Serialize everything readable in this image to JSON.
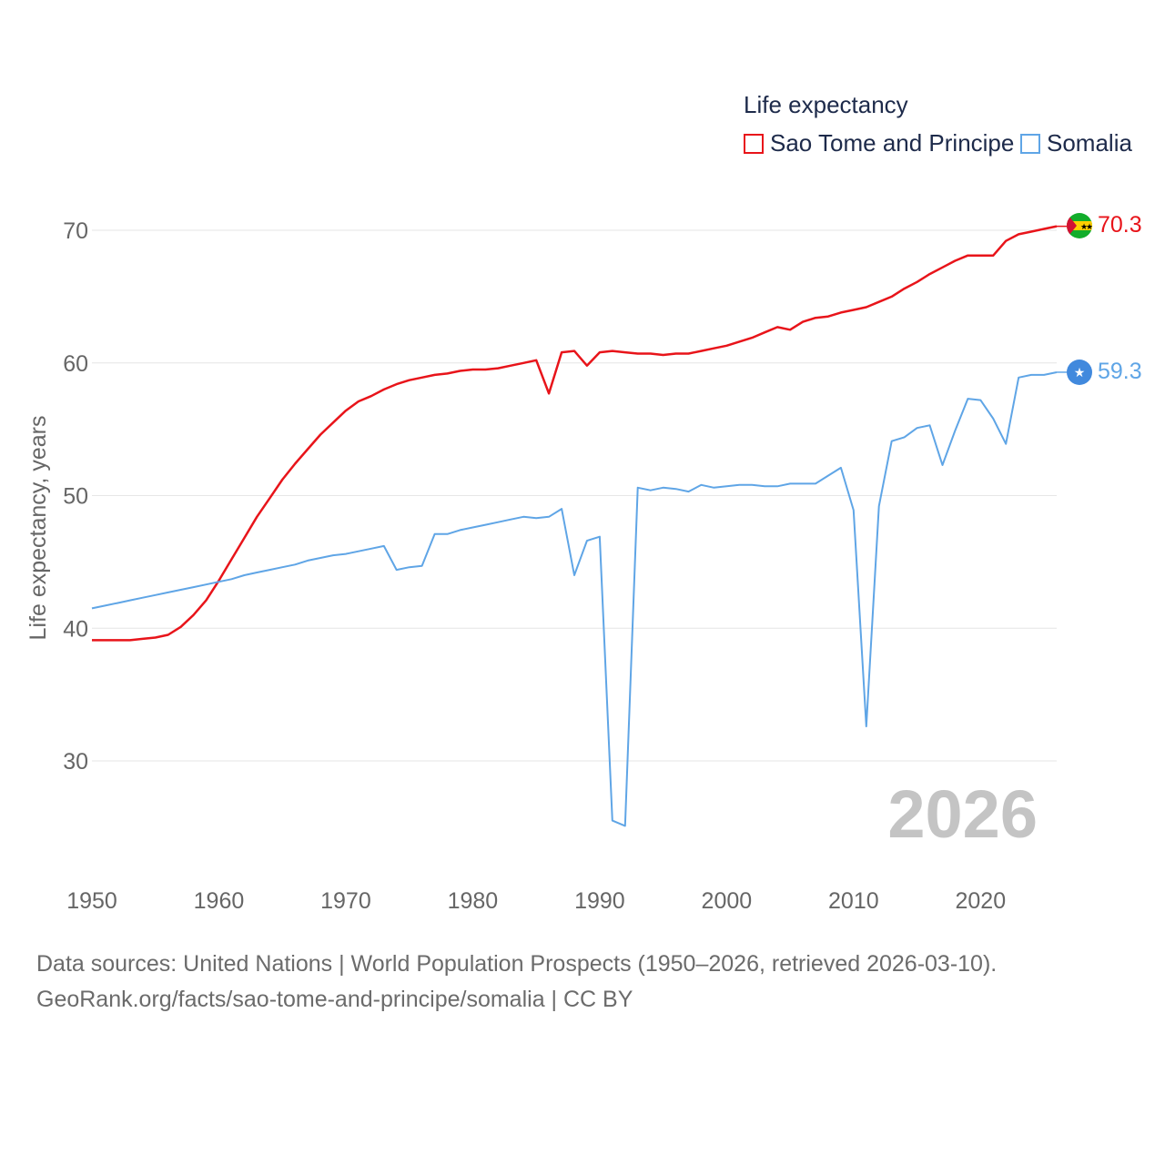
{
  "colors": {
    "sao_tome": "#e8141a",
    "somalia": "#5fa5e6",
    "axis_text": "#666666",
    "grid": "#e6e6e6",
    "year_watermark": "#c4c4c4"
  },
  "legend": {
    "title": "Life expectancy",
    "items": [
      {
        "label": "Sao Tome and Principe",
        "color": "#e8141a"
      },
      {
        "label": "Somalia",
        "color": "#5fa5e6"
      }
    ]
  },
  "year_watermark": "2026",
  "footer": {
    "line1": "Data sources: United Nations | World Population Prospects (1950–2026, retrieved 2026-03-10).",
    "line2": "GeoRank.org/facts/sao-tome-and-principe/somalia | CC BY"
  },
  "chart_data": {
    "type": "line",
    "title": "",
    "xlabel": "",
    "ylabel": "Life expectancy, years",
    "xlim": [
      1950,
      2026
    ],
    "ylim": [
      22,
      73
    ],
    "x_ticks": [
      1950,
      1960,
      1970,
      1980,
      1990,
      2000,
      2010,
      2020
    ],
    "y_ticks": [
      30,
      40,
      50,
      60,
      70
    ],
    "grid": true,
    "legend_position": "top-right",
    "end_labels": [
      {
        "series": "Sao Tome and Principe",
        "text": "70.3",
        "flag": "sao-tome-flag-icon"
      },
      {
        "series": "Somalia",
        "text": "59.3",
        "flag": "somalia-flag-icon"
      }
    ],
    "x": [
      1950,
      1951,
      1952,
      1953,
      1954,
      1955,
      1956,
      1957,
      1958,
      1959,
      1960,
      1961,
      1962,
      1963,
      1964,
      1965,
      1966,
      1967,
      1968,
      1969,
      1970,
      1971,
      1972,
      1973,
      1974,
      1975,
      1976,
      1977,
      1978,
      1979,
      1980,
      1981,
      1982,
      1983,
      1984,
      1985,
      1986,
      1987,
      1988,
      1989,
      1990,
      1991,
      1992,
      1993,
      1994,
      1995,
      1996,
      1997,
      1998,
      1999,
      2000,
      2001,
      2002,
      2003,
      2004,
      2005,
      2006,
      2007,
      2008,
      2009,
      2010,
      2011,
      2012,
      2013,
      2014,
      2015,
      2016,
      2017,
      2018,
      2019,
      2020,
      2021,
      2022,
      2023,
      2024,
      2025,
      2026
    ],
    "series": [
      {
        "name": "Sao Tome and Principe",
        "color": "#e8141a",
        "values": [
          39.1,
          39.1,
          39.1,
          39.1,
          39.2,
          39.3,
          39.5,
          40.1,
          41.0,
          42.1,
          43.6,
          45.2,
          46.8,
          48.4,
          49.8,
          51.2,
          52.4,
          53.5,
          54.6,
          55.5,
          56.4,
          57.1,
          57.5,
          58.0,
          58.4,
          58.7,
          58.9,
          59.1,
          59.2,
          59.4,
          59.5,
          59.5,
          59.6,
          59.8,
          60.0,
          60.2,
          57.7,
          60.8,
          60.9,
          59.8,
          60.8,
          60.9,
          60.8,
          60.7,
          60.7,
          60.6,
          60.7,
          60.7,
          60.9,
          61.1,
          61.3,
          61.6,
          61.9,
          62.3,
          62.7,
          62.5,
          63.1,
          63.4,
          63.5,
          63.8,
          64.0,
          64.2,
          64.6,
          65.0,
          65.6,
          66.1,
          66.7,
          67.2,
          67.7,
          68.1,
          68.1,
          68.1,
          69.2,
          69.7,
          69.9,
          70.1,
          70.3
        ]
      },
      {
        "name": "Somalia",
        "color": "#5fa5e6",
        "values": [
          41.5,
          41.7,
          41.9,
          42.1,
          42.3,
          42.5,
          42.7,
          42.9,
          43.1,
          43.3,
          43.5,
          43.7,
          44.0,
          44.2,
          44.4,
          44.6,
          44.8,
          45.1,
          45.3,
          45.5,
          45.6,
          45.8,
          46.0,
          46.2,
          44.4,
          44.6,
          44.7,
          47.1,
          47.1,
          47.4,
          47.6,
          47.8,
          48.0,
          48.2,
          48.4,
          48.3,
          48.4,
          49.0,
          44.0,
          46.6,
          46.9,
          25.5,
          25.1,
          50.6,
          50.4,
          50.6,
          50.5,
          50.3,
          50.8,
          50.6,
          50.7,
          50.8,
          50.8,
          50.7,
          50.7,
          50.9,
          50.9,
          50.9,
          51.5,
          52.1,
          48.9,
          32.6,
          49.2,
          54.1,
          54.4,
          55.1,
          55.3,
          52.3,
          54.9,
          57.3,
          57.2,
          55.8,
          53.9,
          58.9,
          59.1,
          59.1,
          59.3
        ]
      }
    ]
  }
}
